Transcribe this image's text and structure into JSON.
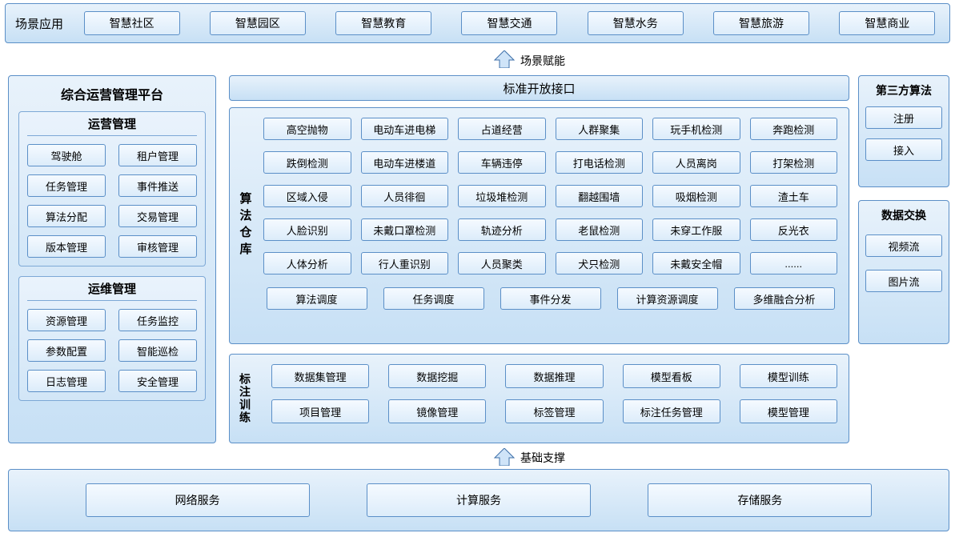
{
  "colors": {
    "panel_border": "#5b8fc7",
    "panel_bg_top": "#e8f2fb",
    "panel_bg_bottom": "#c7e0f5",
    "box_border": "#5b8fc7",
    "box_bg_top": "#f5faff",
    "box_bg_bottom": "#dcecfa",
    "arrow_fill": "#cfe4f8",
    "arrow_stroke": "#3d6fa8",
    "text": "#000000"
  },
  "top": {
    "label": "场景应用",
    "items": [
      "智慧社区",
      "智慧园区",
      "智慧教育",
      "智慧交通",
      "智慧水务",
      "智慧旅游",
      "智慧商业"
    ]
  },
  "arrow1_label": "场景赋能",
  "arrow2_label": "基础支撑",
  "left": {
    "title": "综合运营管理平台",
    "group1": {
      "title": "运营管理",
      "items": [
        "驾驶舱",
        "租户管理",
        "任务管理",
        "事件推送",
        "算法分配",
        "交易管理",
        "版本管理",
        "审核管理"
      ]
    },
    "group2": {
      "title": "运维管理",
      "items": [
        "资源管理",
        "任务监控",
        "参数配置",
        "智能巡检",
        "日志管理",
        "安全管理"
      ]
    }
  },
  "center": {
    "api_title": "标准开放接口",
    "repo_label": "算法仓库",
    "algorithms": [
      [
        "高空抛物",
        "电动车进电梯",
        "占道经营",
        "人群聚集",
        "玩手机检测",
        "奔跑检测"
      ],
      [
        "跌倒检测",
        "电动车进楼道",
        "车辆违停",
        "打电话检测",
        "人员离岗",
        "打架检测"
      ],
      [
        "区域入侵",
        "人员徘徊",
        "垃圾堆检测",
        "翻越围墙",
        "吸烟检测",
        "渣土车"
      ],
      [
        "人脸识别",
        "未戴口罩检测",
        "轨迹分析",
        "老鼠检测",
        "未穿工作服",
        "反光衣"
      ],
      [
        "人体分析",
        "行人重识别",
        "人员聚类",
        "犬只检测",
        "未戴安全帽",
        "......"
      ]
    ],
    "schedule": [
      "算法调度",
      "任务调度",
      "事件分发",
      "计算资源调度",
      "多维融合分析"
    ],
    "train_label": "标注训练",
    "train_rows": [
      [
        "数据集管理",
        "数据挖掘",
        "数据推理",
        "模型看板",
        "模型训练"
      ],
      [
        "项目管理",
        "镜像管理",
        "标签管理",
        "标注任务管理",
        "模型管理"
      ]
    ]
  },
  "right": {
    "block1": {
      "title": "第三方算法",
      "items": [
        "注册",
        "接入"
      ]
    },
    "block2": {
      "title": "数据交换",
      "items": [
        "视频流",
        "图片流"
      ]
    }
  },
  "bottom": {
    "items": [
      "网络服务",
      "计算服务",
      "存储服务"
    ]
  }
}
